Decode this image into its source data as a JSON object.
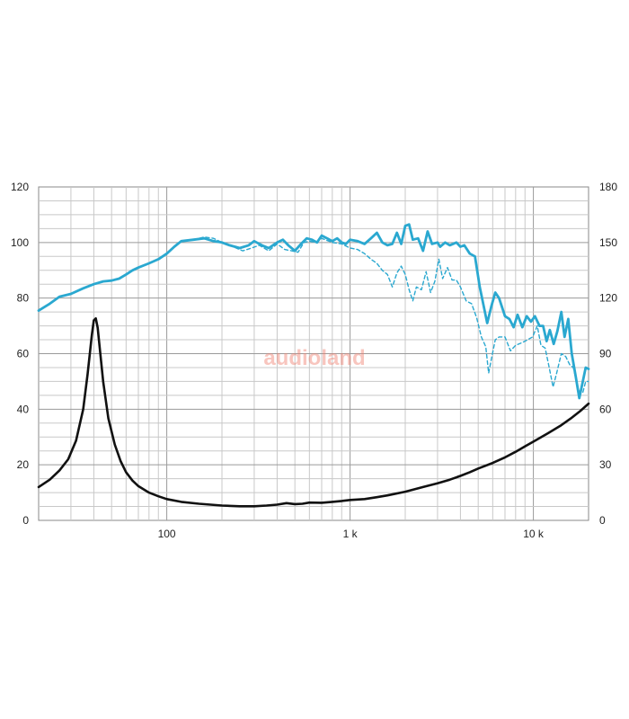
{
  "chart_data": {
    "type": "line",
    "x_scale": "log",
    "xlim": [
      20,
      20000
    ],
    "ylim_left": [
      0,
      120
    ],
    "ylim_right": [
      0,
      180
    ],
    "grid": true,
    "x_tick_labels": [
      {
        "value": 100,
        "label": "100"
      },
      {
        "value": 1000,
        "label": "1 k"
      },
      {
        "value": 10000,
        "label": "10 k"
      }
    ],
    "y_left_ticks": [
      {
        "value": 0,
        "label": "0"
      },
      {
        "value": 20,
        "label": "20"
      },
      {
        "value": 40,
        "label": "40"
      },
      {
        "value": 60,
        "label": "60"
      },
      {
        "value": 80,
        "label": "80"
      },
      {
        "value": 100,
        "label": "100"
      },
      {
        "value": 120,
        "label": "120"
      }
    ],
    "y_right_ticks": [
      {
        "value": 0,
        "label": "0"
      },
      {
        "value": 30,
        "label": "30"
      },
      {
        "value": 60,
        "label": "60"
      },
      {
        "value": 90,
        "label": "90"
      },
      {
        "value": 120,
        "label": "120"
      },
      {
        "value": 150,
        "label": "150"
      },
      {
        "value": 180,
        "label": "180"
      }
    ],
    "series": [
      {
        "axis": "left",
        "color": "#2aa8d0",
        "style": "solid",
        "points": [
          [
            20,
            75.5
          ],
          [
            23,
            78
          ],
          [
            26,
            80.5
          ],
          [
            30,
            81.5
          ],
          [
            35,
            83.5
          ],
          [
            40,
            85
          ],
          [
            45,
            86
          ],
          [
            50,
            86.3
          ],
          [
            55,
            87
          ],
          [
            60,
            88.5
          ],
          [
            65,
            90
          ],
          [
            70,
            91
          ],
          [
            80,
            92.5
          ],
          [
            90,
            94
          ],
          [
            100,
            96
          ],
          [
            110,
            98.5
          ],
          [
            120,
            100.5
          ],
          [
            140,
            101
          ],
          [
            160,
            101.5
          ],
          [
            180,
            100.5
          ],
          [
            200,
            100
          ],
          [
            220,
            99
          ],
          [
            250,
            98
          ],
          [
            280,
            99
          ],
          [
            300,
            100.5
          ],
          [
            330,
            99
          ],
          [
            360,
            98
          ],
          [
            400,
            100
          ],
          [
            430,
            101
          ],
          [
            460,
            99
          ],
          [
            500,
            97
          ],
          [
            540,
            99.5
          ],
          [
            580,
            101.5
          ],
          [
            620,
            101
          ],
          [
            660,
            100
          ],
          [
            700,
            102.5
          ],
          [
            750,
            101.5
          ],
          [
            800,
            100.5
          ],
          [
            850,
            101.5
          ],
          [
            900,
            100
          ],
          [
            950,
            99.5
          ],
          [
            1000,
            101
          ],
          [
            1100,
            100.5
          ],
          [
            1200,
            99.5
          ],
          [
            1300,
            101.5
          ],
          [
            1400,
            103.5
          ],
          [
            1500,
            100
          ],
          [
            1600,
            99
          ],
          [
            1700,
            99.5
          ],
          [
            1800,
            103.5
          ],
          [
            1900,
            99.5
          ],
          [
            2000,
            106
          ],
          [
            2100,
            106.5
          ],
          [
            2200,
            101
          ],
          [
            2350,
            101.5
          ],
          [
            2500,
            97
          ],
          [
            2650,
            104
          ],
          [
            2800,
            99.5
          ],
          [
            3000,
            100
          ],
          [
            3100,
            98.5
          ],
          [
            3300,
            100
          ],
          [
            3500,
            99
          ],
          [
            3800,
            100
          ],
          [
            4000,
            98.5
          ],
          [
            4200,
            99
          ],
          [
            4500,
            96
          ],
          [
            4800,
            95
          ],
          [
            5100,
            84
          ],
          [
            5400,
            76
          ],
          [
            5600,
            71
          ],
          [
            5900,
            77
          ],
          [
            6200,
            82
          ],
          [
            6500,
            80
          ],
          [
            7000,
            73.5
          ],
          [
            7400,
            72.5
          ],
          [
            7800,
            69.5
          ],
          [
            8200,
            74
          ],
          [
            8700,
            69.5
          ],
          [
            9200,
            73.5
          ],
          [
            9700,
            71.5
          ],
          [
            10200,
            73.5
          ],
          [
            10800,
            70
          ],
          [
            11300,
            70
          ],
          [
            11800,
            64.5
          ],
          [
            12300,
            68.5
          ],
          [
            12900,
            63.5
          ],
          [
            13500,
            68
          ],
          [
            14200,
            75
          ],
          [
            14800,
            66
          ],
          [
            15500,
            72.5
          ],
          [
            16200,
            60
          ],
          [
            17000,
            52
          ],
          [
            17800,
            44
          ],
          [
            18600,
            50
          ],
          [
            19300,
            55
          ],
          [
            20000,
            54.5
          ]
        ]
      },
      {
        "axis": "left",
        "color": "#2aa8d0",
        "style": "dashed",
        "points": [
          [
            100,
            96
          ],
          [
            110,
            98.5
          ],
          [
            120,
            100.5
          ],
          [
            140,
            101
          ],
          [
            160,
            102
          ],
          [
            180,
            101.5
          ],
          [
            200,
            100
          ],
          [
            230,
            98.5
          ],
          [
            260,
            97
          ],
          [
            290,
            98
          ],
          [
            320,
            99
          ],
          [
            360,
            97
          ],
          [
            400,
            99.5
          ],
          [
            440,
            97.5
          ],
          [
            480,
            97
          ],
          [
            520,
            96.5
          ],
          [
            560,
            100
          ],
          [
            600,
            100.5
          ],
          [
            650,
            100
          ],
          [
            700,
            101.5
          ],
          [
            800,
            100
          ],
          [
            900,
            99.5
          ],
          [
            1000,
            98
          ],
          [
            1100,
            97.5
          ],
          [
            1200,
            96
          ],
          [
            1300,
            94
          ],
          [
            1400,
            92.5
          ],
          [
            1500,
            90
          ],
          [
            1600,
            88.5
          ],
          [
            1700,
            84
          ],
          [
            1800,
            89
          ],
          [
            1900,
            91.5
          ],
          [
            2000,
            88.5
          ],
          [
            2100,
            83
          ],
          [
            2200,
            79
          ],
          [
            2300,
            84
          ],
          [
            2450,
            83
          ],
          [
            2600,
            89.5
          ],
          [
            2750,
            82
          ],
          [
            2900,
            86
          ],
          [
            3050,
            94
          ],
          [
            3200,
            87
          ],
          [
            3400,
            91
          ],
          [
            3600,
            86.5
          ],
          [
            3800,
            86.5
          ],
          [
            4000,
            84
          ],
          [
            4300,
            79
          ],
          [
            4600,
            78
          ],
          [
            4900,
            73
          ],
          [
            5200,
            66
          ],
          [
            5500,
            62.5
          ],
          [
            5700,
            53
          ],
          [
            5900,
            58
          ],
          [
            6200,
            65
          ],
          [
            6500,
            66
          ],
          [
            7000,
            66
          ],
          [
            7500,
            61
          ],
          [
            8000,
            63
          ],
          [
            8700,
            64
          ],
          [
            9300,
            65
          ],
          [
            9900,
            66
          ],
          [
            10500,
            70
          ],
          [
            11000,
            63
          ],
          [
            11600,
            62
          ],
          [
            12200,
            55
          ],
          [
            12800,
            48
          ],
          [
            13400,
            53
          ],
          [
            14200,
            60
          ],
          [
            15000,
            59
          ],
          [
            15800,
            56
          ],
          [
            16500,
            55
          ],
          [
            17200,
            50
          ],
          [
            17800,
            46
          ],
          [
            18600,
            46
          ],
          [
            19300,
            50
          ],
          [
            20000,
            50
          ]
        ]
      },
      {
        "axis": "right",
        "color": "#111111",
        "style": "solid",
        "points": [
          [
            20,
            18
          ],
          [
            23,
            22
          ],
          [
            26,
            27
          ],
          [
            29,
            33
          ],
          [
            32,
            43
          ],
          [
            35,
            60
          ],
          [
            37,
            79
          ],
          [
            39,
            100
          ],
          [
            40,
            108
          ],
          [
            41,
            109
          ],
          [
            42,
            104
          ],
          [
            43,
            94
          ],
          [
            45,
            75
          ],
          [
            48,
            55
          ],
          [
            52,
            41
          ],
          [
            56,
            32
          ],
          [
            60,
            26
          ],
          [
            65,
            21.5
          ],
          [
            70,
            18.5
          ],
          [
            80,
            15
          ],
          [
            90,
            13
          ],
          [
            100,
            11.5
          ],
          [
            120,
            10
          ],
          [
            150,
            9
          ],
          [
            200,
            8
          ],
          [
            250,
            7.6
          ],
          [
            300,
            7.6
          ],
          [
            350,
            8
          ],
          [
            400,
            8.5
          ],
          [
            450,
            9.3
          ],
          [
            500,
            8.8
          ],
          [
            550,
            9
          ],
          [
            600,
            9.6
          ],
          [
            700,
            9.5
          ],
          [
            800,
            10
          ],
          [
            900,
            10.5
          ],
          [
            1000,
            11
          ],
          [
            1200,
            11.5
          ],
          [
            1400,
            12.5
          ],
          [
            1600,
            13.5
          ],
          [
            2000,
            15.5
          ],
          [
            2500,
            18
          ],
          [
            3000,
            20
          ],
          [
            3500,
            22
          ],
          [
            4000,
            24
          ],
          [
            4500,
            26
          ],
          [
            5000,
            28
          ],
          [
            6000,
            31
          ],
          [
            7000,
            34
          ],
          [
            8000,
            37
          ],
          [
            9000,
            40
          ],
          [
            10000,
            42.5
          ],
          [
            12000,
            47
          ],
          [
            14000,
            51
          ],
          [
            16000,
            55
          ],
          [
            18000,
            59
          ],
          [
            20000,
            63
          ]
        ]
      }
    ]
  },
  "watermark": {
    "text": "audioland",
    "color": "#f08070"
  }
}
